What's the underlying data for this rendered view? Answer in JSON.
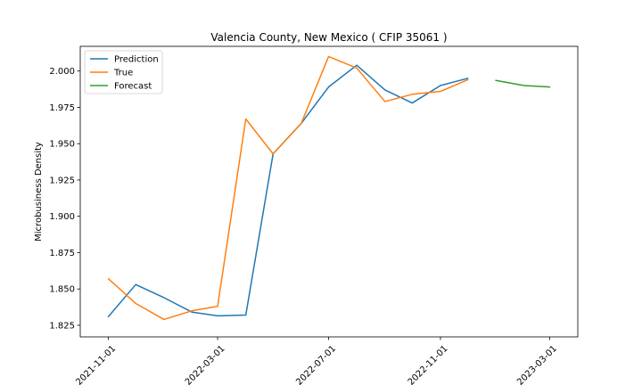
{
  "chart_data": {
    "type": "line",
    "title": "Valencia County, New Mexico ( CFIP 35061 )",
    "xlabel": "",
    "ylabel": "Microbusiness Density",
    "ylim": [
      1.817,
      2.017
    ],
    "xlim": [
      "2021-10-01",
      "2023-04-01"
    ],
    "grid": false,
    "legend_position": "top-left",
    "x_ticks": [
      "2021-11-01",
      "2022-03-01",
      "2022-07-01",
      "2022-11-01",
      "2023-03-01"
    ],
    "y_ticks": [
      1.825,
      1.85,
      1.875,
      1.9,
      1.925,
      1.95,
      1.975,
      2.0
    ],
    "y_tick_labels": [
      "1.825",
      "1.850",
      "1.875",
      "1.900",
      "1.925",
      "1.950",
      "1.975",
      "2.000"
    ],
    "series": [
      {
        "name": "Prediction",
        "color": "#1f77b4",
        "x": [
          "2021-11-01",
          "2021-12-01",
          "2022-01-01",
          "2022-02-01",
          "2022-03-01",
          "2022-04-01",
          "2022-05-01",
          "2022-06-01",
          "2022-07-01",
          "2022-08-01",
          "2022-09-01",
          "2022-10-01",
          "2022-11-01",
          "2022-12-01"
        ],
        "values": [
          1.831,
          1.853,
          1.844,
          1.834,
          1.8315,
          1.832,
          1.943,
          1.964,
          1.989,
          2.004,
          1.987,
          1.978,
          1.99,
          1.995
        ]
      },
      {
        "name": "True",
        "color": "#ff7f0e",
        "x": [
          "2021-11-01",
          "2021-12-01",
          "2022-01-01",
          "2022-02-01",
          "2022-03-01",
          "2022-04-01",
          "2022-05-01",
          "2022-06-01",
          "2022-07-01",
          "2022-08-01",
          "2022-09-01",
          "2022-10-01",
          "2022-11-01",
          "2022-12-01"
        ],
        "values": [
          1.857,
          1.84,
          1.829,
          1.835,
          1.838,
          1.967,
          1.943,
          1.964,
          2.01,
          2.002,
          1.979,
          1.984,
          1.986,
          1.994
        ]
      },
      {
        "name": "Forecast",
        "color": "#2ca02c",
        "x": [
          "2023-01-01",
          "2023-02-01",
          "2023-03-01"
        ],
        "values": [
          1.9935,
          1.99,
          1.989
        ]
      }
    ]
  }
}
